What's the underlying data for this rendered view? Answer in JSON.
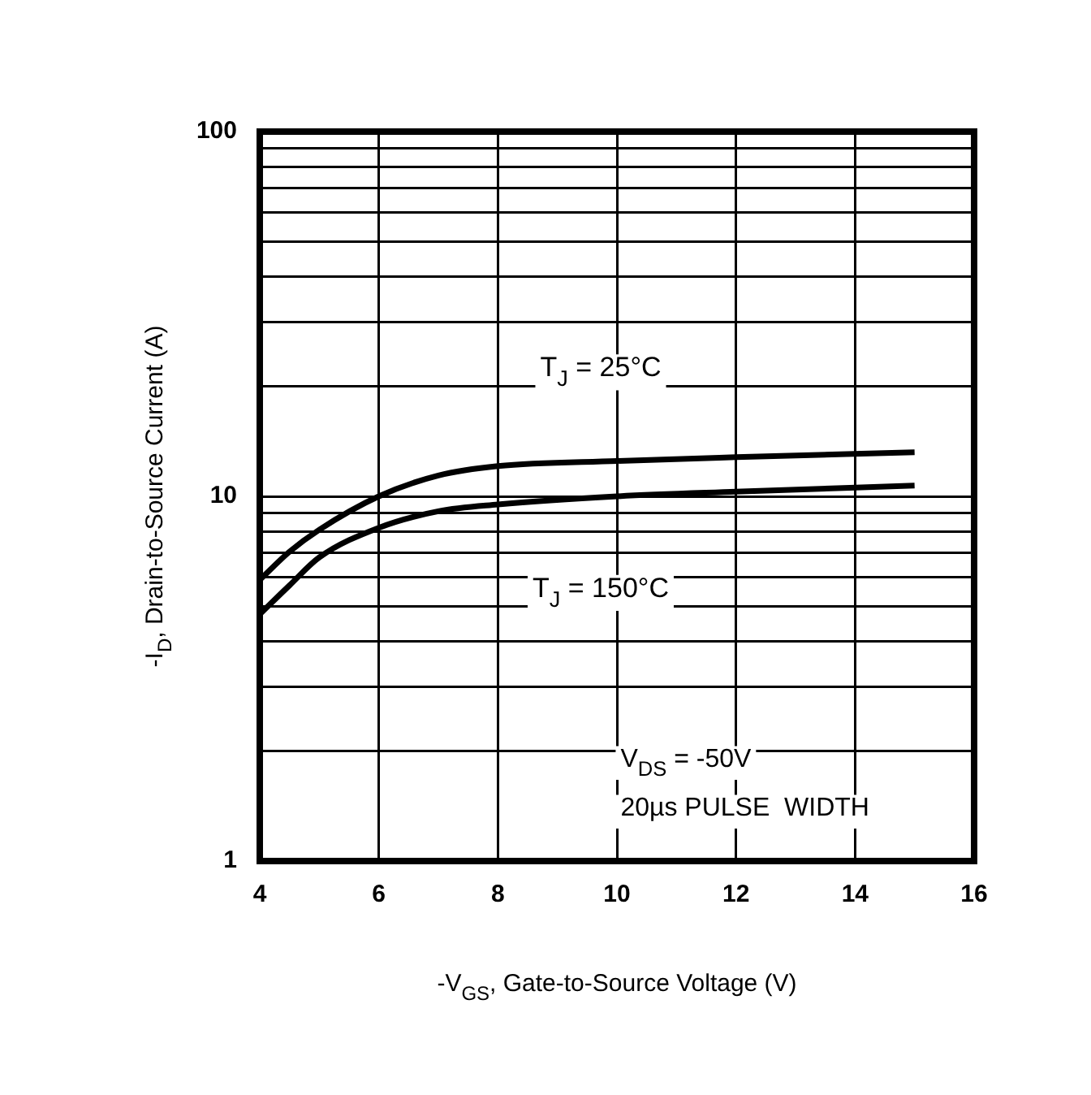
{
  "chart_data": {
    "type": "line",
    "xlabel": "-V$_{GS}$, Gate-to-Source Voltage (V)",
    "ylabel": "-I$_{D}$, Drain-to-Source Current (A)",
    "log": "y",
    "grid": true,
    "x": [
      4,
      4.5,
      5,
      6,
      7,
      8,
      10,
      12,
      15
    ],
    "xlim": [
      4,
      16
    ],
    "xticks": [
      4,
      6,
      8,
      10,
      12,
      14,
      16
    ],
    "ylim": [
      1,
      100
    ],
    "yticks": [
      1,
      {
        "value": 2,
        "label": null
      },
      {
        "value": 3,
        "label": null
      },
      {
        "value": 4,
        "label": null
      },
      {
        "value": 5,
        "label": null
      },
      {
        "value": 6,
        "label": null
      },
      {
        "value": 7,
        "label": null
      },
      {
        "value": 8,
        "label": null
      },
      {
        "value": 9,
        "label": null
      },
      10,
      {
        "value": 20,
        "label": null
      },
      {
        "value": 30,
        "label": null
      },
      {
        "value": 40,
        "label": null
      },
      {
        "value": 50,
        "label": null
      },
      {
        "value": 60,
        "label": null
      },
      {
        "value": 70,
        "label": null
      },
      {
        "value": 80,
        "label": null
      },
      {
        "value": 90,
        "label": null
      },
      100
    ],
    "series": [
      {
        "name": "T$_{J}$ = 25°C",
        "color": "#000000",
        "values": [
          5.9,
          7.05,
          8.1,
          10.0,
          11.4,
          12.1,
          12.5,
          12.8,
          13.2
        ]
      },
      {
        "name": "T$_{J}$ = 150°C",
        "color": "#000000",
        "values": [
          4.75,
          5.7,
          6.8,
          8.2,
          9.1,
          9.5,
          10.0,
          10.3,
          10.7
        ]
      }
    ],
    "annotations": [
      "V$_{DS}$ = -50V",
      "20µs PULSE  WIDTH"
    ]
  }
}
